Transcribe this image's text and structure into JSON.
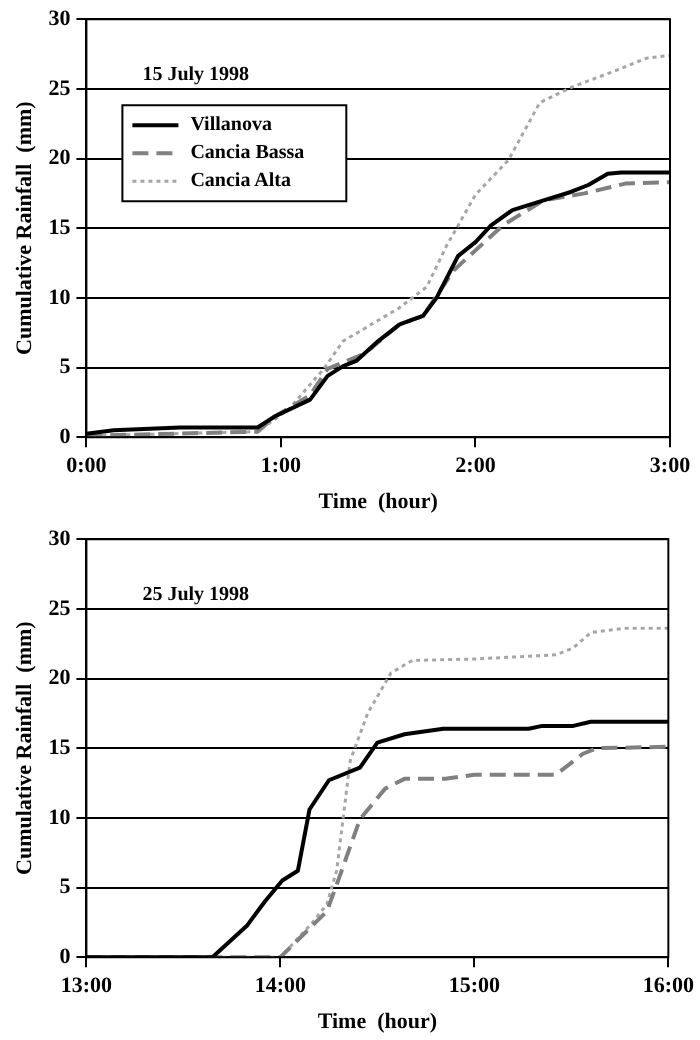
{
  "chart_data": [
    {
      "type": "line",
      "annotations": [
        "15 July 1998"
      ],
      "xlabel": "Time  (hour)",
      "ylabel": "Cumulative Rainfall  (mm)",
      "xlim": [
        0,
        3
      ],
      "xticks": [
        {
          "value": 0,
          "label": "0:00"
        },
        {
          "value": 1,
          "label": "1:00"
        },
        {
          "value": 2,
          "label": "2:00"
        },
        {
          "value": 3,
          "label": "3:00"
        }
      ],
      "ylim": [
        0,
        30
      ],
      "yticks": [
        0,
        5,
        10,
        15,
        20,
        25,
        30
      ],
      "grid": "y",
      "legend": "top left",
      "marker": "none",
      "series": [
        {
          "name": "Villanova",
          "color": "#000000",
          "line_style": "solid",
          "x": [
            0,
            0.14,
            0.48,
            0.88,
            0.97,
            1.15,
            1.24,
            1.32,
            1.39,
            1.5,
            1.61,
            1.73,
            1.8,
            1.91,
            2.0,
            2.08,
            2.19,
            2.35,
            2.49,
            2.58,
            2.68,
            2.75,
            3
          ],
          "values": [
            0.25,
            0.5,
            0.7,
            0.7,
            1.5,
            2.7,
            4.4,
            5.1,
            5.5,
            6.9,
            8.1,
            8.7,
            10,
            13,
            14,
            15.2,
            16.3,
            17,
            17.6,
            18.1,
            18.9,
            19,
            19
          ]
        },
        {
          "name": "Cancia Bassa",
          "color": "#808080",
          "line_style": "dashed",
          "x": [
            0,
            0.88,
            0.97,
            1.15,
            1.24,
            1.43,
            1.61,
            1.73,
            1.89,
            2.14,
            2.35,
            2.56,
            2.77,
            3
          ],
          "values": [
            0.1,
            0.4,
            1.5,
            3.0,
            4.9,
            6,
            8.1,
            8.7,
            12,
            15.2,
            17,
            17.5,
            18.2,
            18.3
          ]
        },
        {
          "name": "Cancia Alta",
          "color": "#a6a6a6",
          "line_style": "dotted",
          "x": [
            0,
            0.88,
            1.04,
            1.22,
            1.32,
            1.43,
            1.61,
            1.75,
            1.85,
            2,
            2.17,
            2.33,
            2.49,
            2.7,
            2.88,
            3
          ],
          "values": [
            0.1,
            0.4,
            2,
            4.9,
            6.9,
            7.8,
            9.3,
            10.8,
            13.7,
            17.4,
            19.9,
            24,
            25.1,
            26.2,
            27.2,
            27.4
          ]
        }
      ]
    },
    {
      "type": "line",
      "annotations": [
        "25 July 1998"
      ],
      "xlabel": "Time  (hour)",
      "ylabel": "Cumulative Rainfall  (mm)",
      "xlim": [
        13,
        16
      ],
      "xticks": [
        {
          "value": 13,
          "label": "13:00"
        },
        {
          "value": 14,
          "label": "14:00"
        },
        {
          "value": 15,
          "label": "15:00"
        },
        {
          "value": 16,
          "label": "16:00"
        }
      ],
      "ylim": [
        0,
        30
      ],
      "yticks": [
        0,
        5,
        10,
        15,
        20,
        25,
        30
      ],
      "grid": "y",
      "marker": "none",
      "series": [
        {
          "color": "#000000",
          "line_style": "solid",
          "x": [
            13,
            13.65,
            13.83,
            13.92,
            14.01,
            14.09,
            14.15,
            14.25,
            14.41,
            14.5,
            14.64,
            14.84,
            15.28,
            15.35,
            15.51,
            15.6,
            16
          ],
          "values": [
            0,
            0,
            2.3,
            4.0,
            5.5,
            6.2,
            10.6,
            12.7,
            13.6,
            15.4,
            16.0,
            16.4,
            16.4,
            16.6,
            16.6,
            16.9,
            16.9
          ]
        },
        {
          "color": "#808080",
          "line_style": "dashed",
          "x": [
            13,
            14.0,
            14.24,
            14.29,
            14.41,
            14.54,
            14.64,
            14.85,
            15,
            15.42,
            15.56,
            15.63,
            16
          ],
          "values": [
            0,
            0,
            3.3,
            5.2,
            9.9,
            12.1,
            12.8,
            12.8,
            13.1,
            13.1,
            14.6,
            15,
            15.1
          ]
        },
        {
          "color": "#a6a6a6",
          "line_style": "dotted",
          "x": [
            13,
            14.0,
            14.16,
            14.24,
            14.29,
            14.36,
            14.45,
            14.57,
            14.68,
            15,
            15.42,
            15.51,
            15.6,
            15.77,
            16
          ],
          "values": [
            0,
            0,
            2.4,
            3.8,
            6.2,
            14.1,
            17.5,
            20.4,
            21.3,
            21.4,
            21.7,
            22.2,
            23.3,
            23.6,
            23.6
          ]
        }
      ]
    }
  ]
}
